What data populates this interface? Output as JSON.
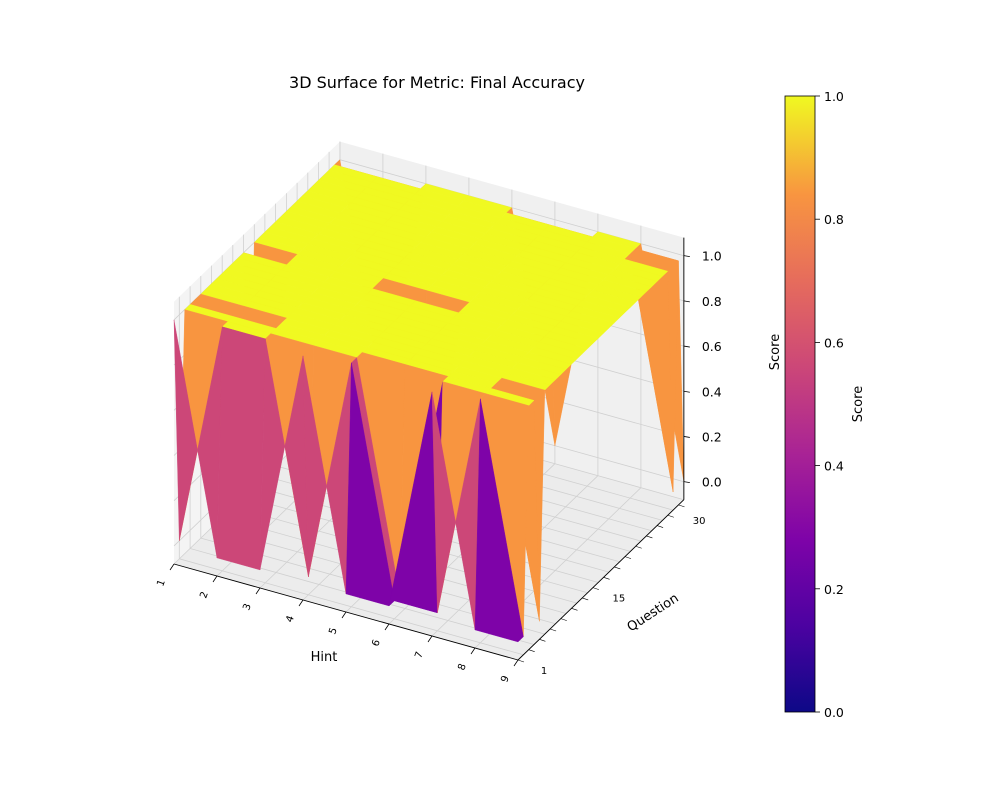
{
  "chart_data": {
    "type": "surface3d",
    "title": "3D Surface for Metric: Final Accuracy",
    "xlabel": "Hint",
    "ylabel": "Question",
    "zlabel": "Score",
    "colorbar_label": "Score",
    "colormap": "plasma",
    "x_ticks": [
      "1",
      "2",
      "3",
      "4",
      "5",
      "6",
      "7",
      "8",
      "9"
    ],
    "y_ticks": [
      "1",
      "15",
      "30"
    ],
    "z_ticks": [
      "0.0",
      "0.2",
      "0.4",
      "0.6",
      "0.8",
      "1.0"
    ],
    "colorbar_ticks": [
      "0.0",
      "0.2",
      "0.4",
      "0.6",
      "0.8",
      "1.0"
    ],
    "xlim": [
      1,
      9
    ],
    "ylim": [
      1,
      32
    ],
    "zlim": [
      0,
      1
    ],
    "grid": true,
    "colorbar_position": "right",
    "hints": [
      1,
      2,
      3,
      4,
      5,
      6,
      7,
      8,
      9
    ],
    "questions": [
      1,
      2,
      3,
      4,
      5,
      6,
      7,
      8,
      9,
      10,
      11,
      12,
      13,
      14,
      15,
      16,
      17,
      18,
      19,
      20,
      21,
      22,
      23,
      24,
      25,
      26,
      27,
      28,
      29,
      30,
      31,
      32
    ],
    "scores": [
      [
        1,
        0,
        0,
        1,
        0,
        0,
        1,
        0,
        0
      ],
      [
        0,
        1,
        1,
        0,
        1,
        0,
        0,
        1,
        0
      ],
      [
        1,
        1,
        1,
        1,
        1,
        0,
        1,
        1,
        1
      ],
      [
        1,
        1,
        1,
        1,
        1,
        1,
        1,
        1,
        1
      ],
      [
        1,
        0,
        1,
        1,
        1,
        1,
        1,
        1,
        0
      ],
      [
        1,
        1,
        1,
        1,
        1,
        1,
        1,
        1,
        1
      ],
      [
        1,
        1,
        1,
        1,
        1,
        1,
        1,
        1,
        1
      ],
      [
        1,
        1,
        1,
        1,
        1,
        1,
        1,
        1,
        1
      ],
      [
        1,
        1,
        1,
        1,
        1,
        1,
        1,
        1,
        1
      ],
      [
        1,
        1,
        1,
        1,
        1,
        1,
        1,
        1,
        1
      ],
      [
        1,
        1,
        1,
        1,
        1,
        1,
        1,
        1,
        1
      ],
      [
        1,
        1,
        1,
        1,
        1,
        1,
        1,
        1,
        1
      ],
      [
        1,
        1,
        1,
        1,
        1,
        1,
        1,
        1,
        1
      ],
      [
        1,
        1,
        1,
        1,
        1,
        1,
        1,
        1,
        1
      ],
      [
        0,
        1,
        1,
        1,
        0,
        1,
        1,
        1,
        1
      ],
      [
        1,
        1,
        1,
        1,
        1,
        1,
        1,
        1,
        1
      ],
      [
        1,
        1,
        1,
        1,
        1,
        1,
        1,
        1,
        1
      ],
      [
        1,
        1,
        1,
        1,
        1,
        1,
        1,
        1,
        1
      ],
      [
        1,
        1,
        1,
        1,
        1,
        1,
        1,
        1,
        1
      ],
      [
        1,
        1,
        1,
        1,
        1,
        1,
        1,
        1,
        1
      ],
      [
        1,
        1,
        1,
        1,
        1,
        1,
        1,
        1,
        1
      ],
      [
        1,
        1,
        1,
        1,
        1,
        1,
        1,
        1,
        1
      ],
      [
        1,
        1,
        1,
        1,
        1,
        1,
        1,
        1,
        1
      ],
      [
        1,
        1,
        1,
        1,
        1,
        1,
        1,
        1,
        1
      ],
      [
        1,
        1,
        1,
        1,
        1,
        1,
        1,
        1,
        1
      ],
      [
        1,
        1,
        1,
        1,
        1,
        1,
        1,
        1,
        1
      ],
      [
        1,
        1,
        1,
        1,
        1,
        1,
        1,
        1,
        1
      ],
      [
        1,
        1,
        1,
        1,
        1,
        1,
        1,
        1,
        1
      ],
      [
        1,
        1,
        1,
        1,
        1,
        1,
        1,
        1,
        1
      ],
      [
        1,
        1,
        1,
        1,
        1,
        1,
        1,
        1,
        0
      ],
      [
        1,
        1,
        1,
        1,
        1,
        1,
        1,
        1,
        1
      ],
      [
        1,
        0,
        1,
        1,
        1,
        0,
        1,
        1,
        0
      ]
    ]
  }
}
